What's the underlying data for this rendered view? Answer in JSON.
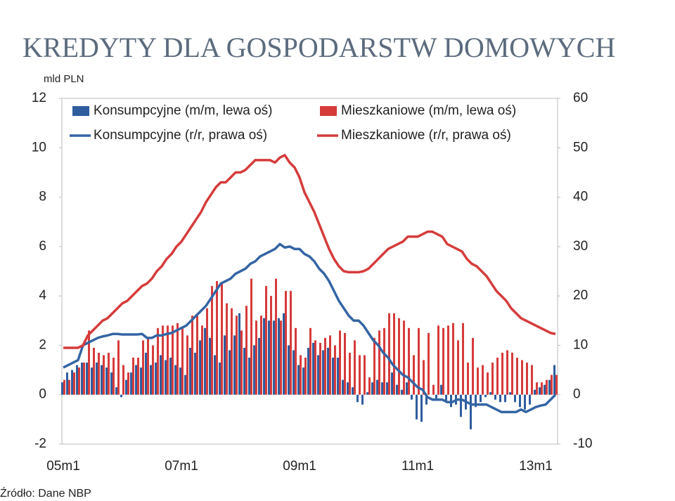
{
  "chart_data": {
    "type": "combo",
    "title": "KREDYTY DLA GOSPODARSTW DOMOWYCH",
    "y_axis_label": "mld PLN",
    "source": "Źródło: Dane NBP",
    "categories": [
      "05m1",
      null,
      null,
      null,
      null,
      null,
      null,
      null,
      null,
      null,
      null,
      null,
      null,
      null,
      null,
      null,
      null,
      null,
      null,
      null,
      null,
      null,
      null,
      null,
      "07m1",
      null,
      null,
      null,
      null,
      null,
      null,
      null,
      null,
      null,
      null,
      null,
      null,
      null,
      null,
      null,
      null,
      null,
      null,
      null,
      null,
      null,
      null,
      null,
      "09m1",
      null,
      null,
      null,
      null,
      null,
      null,
      null,
      null,
      null,
      null,
      null,
      null,
      null,
      null,
      null,
      null,
      null,
      null,
      null,
      null,
      null,
      null,
      null,
      "11m1",
      null,
      null,
      null,
      null,
      null,
      null,
      null,
      null,
      null,
      null,
      null,
      null,
      null,
      null,
      null,
      null,
      null,
      null,
      null,
      null,
      null,
      null,
      null,
      "13m1",
      null,
      null,
      null,
      null
    ],
    "ylim": [
      -2,
      12
    ],
    "yticks": [
      -2,
      0,
      2,
      4,
      6,
      8,
      10,
      12
    ],
    "y2lim": [
      -10,
      60
    ],
    "y2ticks": [
      -10,
      0,
      10,
      20,
      30,
      40,
      50,
      60
    ],
    "legend": "top",
    "series": [
      {
        "name": "Konsumpcyjne (m/m, lewa oś)",
        "type": "bar",
        "color": "#2f5d9e",
        "values": [
          0.5,
          0.9,
          1.0,
          1.2,
          1.3,
          1.3,
          1.1,
          1.3,
          1.2,
          1.1,
          0.9,
          0.3,
          -0.1,
          0.6,
          0.9,
          1.2,
          1.1,
          1.7,
          1.2,
          1.3,
          1.6,
          1.4,
          1.5,
          1.2,
          1.1,
          0.8,
          1.9,
          1.7,
          2.2,
          2.7,
          2.3,
          1.6,
          1.3,
          2.4,
          1.8,
          2.4,
          3.3,
          1.9,
          1.5,
          2.0,
          2.3,
          3.1,
          3.0,
          3.0,
          3.1,
          3.3,
          2.0,
          1.8,
          1.2,
          1.1,
          1.9,
          2.1,
          1.6,
          1.8,
          1.9,
          1.5,
          1.5,
          0.6,
          0.5,
          0.3,
          -0.3,
          -0.4,
          0.1,
          0.5,
          0.6,
          0.5,
          0.5,
          0.9,
          0.4,
          0.2,
          0.5,
          -0.2,
          -1.0,
          -1.1,
          -0.4,
          0.0,
          -0.2,
          0.4,
          -0.3,
          -0.5,
          -0.4,
          -0.9,
          -0.6,
          -1.4,
          -0.5,
          -0.3,
          -0.1,
          0.1,
          -0.2,
          -0.3,
          -0.3,
          0.1,
          -0.3,
          -0.5,
          -0.6,
          -0.4,
          0.2,
          0.3,
          0.4,
          0.6,
          1.2
        ]
      },
      {
        "name": "Mieszkaniowe (m/m, lewa oś)",
        "type": "bar",
        "color": "#d63b3b",
        "values": [
          0.6,
          0.6,
          0.9,
          1.1,
          1.3,
          2.6,
          1.9,
          1.7,
          1.6,
          1.7,
          1.5,
          2.2,
          1.2,
          0.9,
          1.5,
          1.5,
          2.2,
          2.3,
          2.0,
          2.7,
          2.8,
          2.8,
          2.8,
          2.9,
          2.7,
          2.4,
          3.2,
          3.2,
          2.8,
          3.5,
          4.4,
          4.6,
          4.5,
          3.7,
          3.5,
          3.2,
          2.6,
          3.6,
          4.7,
          3.0,
          3.2,
          4.4,
          4.0,
          4.7,
          3.0,
          4.2,
          4.2,
          2.7,
          1.6,
          1.5,
          2.7,
          2.2,
          2.1,
          2.3,
          2.4,
          2.0,
          2.6,
          2.5,
          1.7,
          2.2,
          1.6,
          1.6,
          0.7,
          2.3,
          2.6,
          2.7,
          3.3,
          3.3,
          3.1,
          3.0,
          2.7,
          1.6,
          2.7,
          1.4,
          2.5,
          0.4,
          2.8,
          2.7,
          2.8,
          2.9,
          2.2,
          2.9,
          1.3,
          2.3,
          1.1,
          1.2,
          0.9,
          1.3,
          1.5,
          1.7,
          1.8,
          1.7,
          1.5,
          1.4,
          1.3,
          1.2,
          0.5,
          0.5,
          0.6,
          0.8,
          0.8
        ]
      },
      {
        "name": "Konsumpcyjne (r/r, prawa oś)",
        "type": "line",
        "axis": "y2",
        "color": "#3465a4",
        "values": [
          5.5,
          6,
          6.5,
          7,
          10,
          10.5,
          11,
          11.5,
          11.8,
          12,
          12.3,
          12.3,
          12.2,
          12.2,
          12.2,
          12.2,
          12.3,
          11.5,
          11.5,
          12,
          12,
          12.3,
          12.5,
          13,
          13.5,
          14,
          15,
          16,
          17,
          18,
          19.5,
          21,
          22.5,
          23,
          23.5,
          24.5,
          25,
          25.5,
          26.5,
          27,
          28,
          28.5,
          29,
          29.5,
          30.5,
          29.8,
          30,
          29.5,
          29.5,
          28.5,
          28,
          27,
          25.5,
          24.5,
          23,
          21,
          19,
          17.5,
          16,
          15,
          15,
          14,
          12.5,
          11,
          10,
          8.5,
          7.5,
          6,
          5,
          4,
          3.5,
          2.5,
          1.5,
          1,
          -0.5,
          -1,
          -1,
          -1,
          -1.5,
          -1.5,
          -1,
          -1,
          -1.5,
          -2,
          -2,
          -2,
          -2,
          -2.5,
          -3,
          -3.5,
          -3.5,
          -3.5,
          -3.5,
          -3,
          -3.5,
          -3,
          -2.5,
          -2.2,
          -2,
          -1,
          0
        ]
      },
      {
        "name": "Mieszkaniowe (r/r, prawa oś)",
        "type": "line",
        "axis": "y2",
        "color": "#d63b3b",
        "values": [
          9.5,
          9.5,
          9.5,
          9.5,
          10,
          12,
          13,
          14,
          15,
          15.5,
          16.5,
          17.5,
          18.5,
          19,
          20,
          21,
          22,
          22.5,
          23.5,
          25,
          26,
          27.5,
          28.5,
          30,
          31,
          32.5,
          34,
          35.5,
          37,
          39,
          40.5,
          42,
          43,
          43,
          44,
          45,
          45,
          45.5,
          46.5,
          47.5,
          47.5,
          47.5,
          47.5,
          47,
          48,
          48.5,
          47,
          46,
          44,
          41,
          39,
          37,
          34.5,
          32,
          29.5,
          27.5,
          26,
          25,
          24.8,
          24.8,
          24.8,
          25,
          25.5,
          26.5,
          27.5,
          28.5,
          29.5,
          30,
          30.5,
          31,
          32,
          32,
          32,
          32.5,
          33,
          33,
          32.5,
          32,
          30.5,
          30,
          29.5,
          29,
          27.5,
          26.5,
          26,
          25,
          24,
          22.5,
          21,
          20,
          19,
          17.5,
          16.5,
          15.5,
          15,
          14.5,
          14,
          13.5,
          13,
          12.5,
          12.3
        ]
      }
    ]
  }
}
